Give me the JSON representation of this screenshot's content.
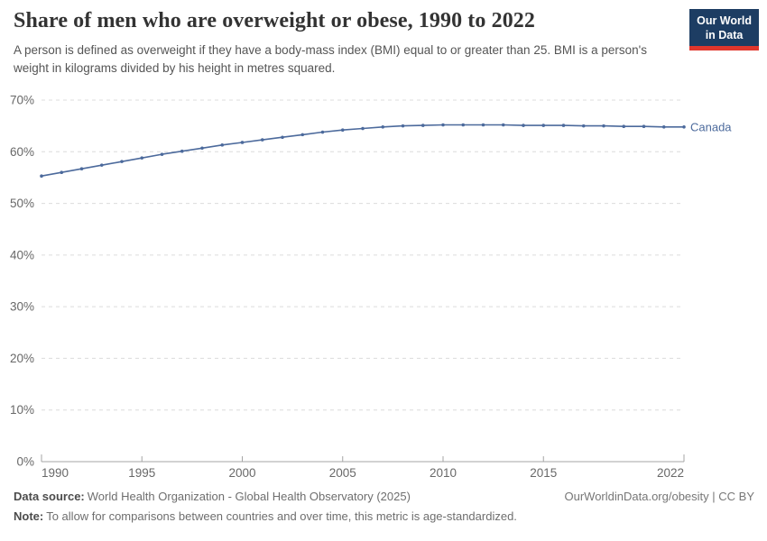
{
  "chart_data": {
    "type": "line",
    "title": "Share of men who are overweight or obese, 1990 to 2022",
    "subtitle": "A person is defined as overweight if they have a body-mass index (BMI) equal to or greater than 25. BMI is a person's weight in kilograms divided by his height in metres squared.",
    "x": [
      1990,
      1991,
      1992,
      1993,
      1994,
      1995,
      1996,
      1997,
      1998,
      1999,
      2000,
      2001,
      2002,
      2003,
      2004,
      2005,
      2006,
      2007,
      2008,
      2009,
      2010,
      2011,
      2012,
      2013,
      2014,
      2015,
      2016,
      2017,
      2018,
      2019,
      2020,
      2021,
      2022
    ],
    "series": [
      {
        "name": "Canada",
        "color": "#4c6a9c",
        "values": [
          55.3,
          56.0,
          56.7,
          57.4,
          58.1,
          58.8,
          59.5,
          60.1,
          60.7,
          61.3,
          61.8,
          62.3,
          62.8,
          63.3,
          63.8,
          64.2,
          64.5,
          64.8,
          65.0,
          65.1,
          65.2,
          65.2,
          65.2,
          65.2,
          65.1,
          65.1,
          65.1,
          65.0,
          65.0,
          64.9,
          64.9,
          64.8,
          64.8
        ]
      }
    ],
    "xlabel": "",
    "ylabel": "",
    "ylim": [
      0,
      70
    ],
    "yticks": [
      0,
      10,
      20,
      30,
      40,
      50,
      60,
      70
    ],
    "ytick_suffix": "%",
    "xticks": [
      1990,
      1995,
      2000,
      2005,
      2010,
      2015,
      2022
    ],
    "grid": "horizontal-dashed",
    "legend_position": "end-of-line"
  },
  "logo": {
    "line1": "Our World",
    "line2": "in Data"
  },
  "footer": {
    "source_label": "Data source:",
    "source_text": "World Health Organization - Global Health Observatory (2025)",
    "link": "OurWorldinData.org/obesity | CC BY",
    "note_label": "Note:",
    "note_text": "To allow for comparisons between countries and over time, this metric is age-standardized."
  },
  "colors": {
    "accent": "#4c6a9c",
    "grid": "#dcdcdc",
    "axis": "#a5a5a5",
    "tick_text": "#686868",
    "title_text": "#333333",
    "subtitle_text": "#555555",
    "logo_bg": "#1d3d63",
    "logo_bar": "#e0362c"
  }
}
